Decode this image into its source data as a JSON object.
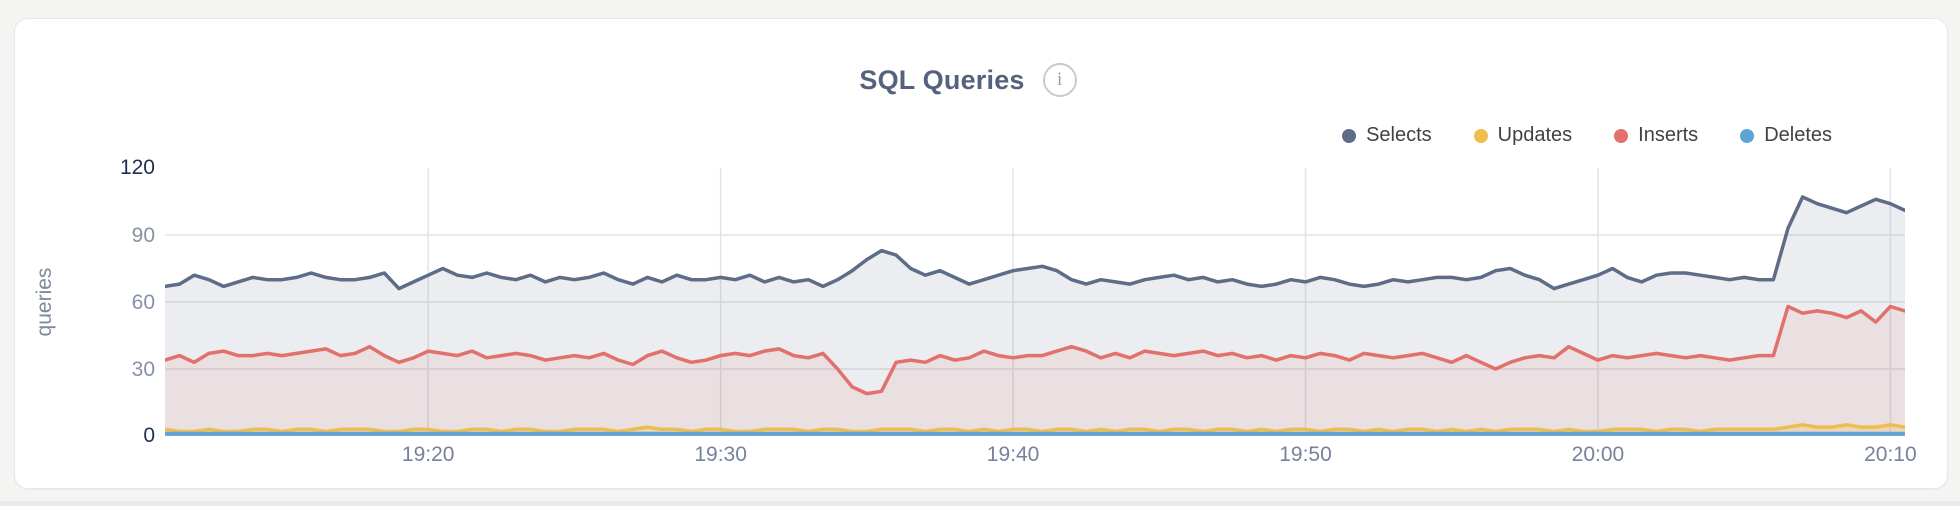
{
  "header": {
    "title": "SQL Queries",
    "info_icon_glyph": "i"
  },
  "legend": {
    "items": [
      {
        "label": "Selects"
      },
      {
        "label": "Updates"
      },
      {
        "label": "Inserts"
      },
      {
        "label": "Deletes"
      }
    ]
  },
  "colors": {
    "selects": "#5d6c87",
    "updates": "#eebd4d",
    "inserts": "#e2706b",
    "deletes": "#5fa4d6",
    "grid": "#e4e4e4",
    "axis_minor_text": "#8691a8",
    "axis_major_text": "#1f2f52"
  },
  "chart_data": {
    "type": "area",
    "title": "SQL Queries",
    "ylabel": "queries",
    "xlabel": "",
    "ylim": [
      0,
      120
    ],
    "yticks": [
      0,
      30,
      60,
      90,
      120
    ],
    "ytick_labels": {
      "v120": "120",
      "v90": "90",
      "v60": "60",
      "v30": "30",
      "v0": "0"
    },
    "xtick_labels": [
      "19:20",
      "19:30",
      "19:40",
      "19:50",
      "20:00",
      "20:10"
    ],
    "x_start_time": "19:11",
    "x_interval_seconds": 30,
    "x_total_minutes": 59.5,
    "xtick_offsets_minutes": [
      9,
      19,
      29,
      39,
      49,
      59
    ],
    "grid": true,
    "legend_position": "top-right",
    "series": [
      {
        "name": "Selects",
        "color": "#5d6c87",
        "values": [
          67,
          68,
          72,
          70,
          67,
          69,
          71,
          70,
          70,
          71,
          73,
          71,
          70,
          70,
          71,
          73,
          66,
          69,
          72,
          75,
          72,
          71,
          73,
          71,
          70,
          72,
          69,
          71,
          70,
          71,
          73,
          70,
          68,
          71,
          69,
          72,
          70,
          70,
          71,
          70,
          72,
          69,
          71,
          69,
          70,
          67,
          70,
          74,
          79,
          83,
          81,
          75,
          72,
          74,
          71,
          68,
          70,
          72,
          74,
          75,
          76,
          74,
          70,
          68,
          70,
          69,
          68,
          70,
          71,
          72,
          70,
          71,
          69,
          70,
          68,
          67,
          68,
          70,
          69,
          71,
          70,
          68,
          67,
          68,
          70,
          69,
          70,
          71,
          71,
          70,
          71,
          74,
          75,
          72,
          70,
          66,
          68,
          70,
          72,
          75,
          71,
          69,
          72,
          73,
          73,
          72,
          71,
          70,
          71,
          70,
          70,
          93,
          107,
          104,
          102,
          100,
          103,
          106,
          104,
          101
        ]
      },
      {
        "name": "Updates",
        "color": "#eebd4d",
        "values": [
          3,
          2,
          2,
          3,
          2,
          2,
          3,
          3,
          2,
          3,
          3,
          2,
          3,
          3,
          3,
          2,
          2,
          3,
          3,
          2,
          2,
          3,
          3,
          2,
          3,
          3,
          2,
          2,
          3,
          3,
          3,
          2,
          3,
          4,
          3,
          3,
          2,
          3,
          3,
          2,
          2,
          3,
          3,
          3,
          2,
          3,
          3,
          2,
          2,
          3,
          3,
          3,
          2,
          3,
          3,
          2,
          3,
          2,
          3,
          3,
          2,
          3,
          3,
          2,
          3,
          2,
          3,
          3,
          2,
          3,
          3,
          2,
          3,
          3,
          2,
          3,
          2,
          3,
          3,
          2,
          3,
          3,
          2,
          3,
          2,
          3,
          3,
          2,
          3,
          2,
          3,
          2,
          3,
          3,
          3,
          2,
          3,
          2,
          2,
          3,
          3,
          3,
          2,
          3,
          3,
          2,
          3,
          3,
          3,
          3,
          3,
          4,
          5,
          4,
          4,
          5,
          4,
          4,
          5,
          4
        ]
      },
      {
        "name": "Inserts",
        "color": "#e2706b",
        "values": [
          34,
          36,
          33,
          37,
          38,
          36,
          36,
          37,
          36,
          37,
          38,
          39,
          36,
          37,
          40,
          36,
          33,
          35,
          38,
          37,
          36,
          38,
          35,
          36,
          37,
          36,
          34,
          35,
          36,
          35,
          37,
          34,
          32,
          36,
          38,
          35,
          33,
          34,
          36,
          37,
          36,
          38,
          39,
          36,
          35,
          37,
          30,
          22,
          19,
          20,
          33,
          34,
          33,
          36,
          34,
          35,
          38,
          36,
          35,
          36,
          36,
          38,
          40,
          38,
          35,
          37,
          35,
          38,
          37,
          36,
          37,
          38,
          36,
          37,
          35,
          36,
          34,
          36,
          35,
          37,
          36,
          34,
          37,
          36,
          35,
          36,
          37,
          35,
          33,
          36,
          33,
          30,
          33,
          35,
          36,
          35,
          40,
          37,
          34,
          36,
          35,
          36,
          37,
          36,
          35,
          36,
          35,
          34,
          35,
          36,
          36,
          58,
          55,
          56,
          55,
          53,
          56,
          51,
          58,
          56
        ]
      },
      {
        "name": "Deletes",
        "color": "#5fa4d6",
        "values": [
          1,
          1,
          1,
          1,
          1,
          1,
          1,
          1,
          1,
          1,
          1,
          1,
          1,
          1,
          1,
          1,
          1,
          1,
          1,
          1,
          1,
          1,
          1,
          1,
          1,
          1,
          1,
          1,
          1,
          1,
          1,
          1,
          1,
          1,
          1,
          1,
          1,
          1,
          1,
          1,
          1,
          1,
          1,
          1,
          1,
          1,
          1,
          1,
          1,
          1,
          1,
          1,
          1,
          1,
          1,
          1,
          1,
          1,
          1,
          1,
          1,
          1,
          1,
          1,
          1,
          1,
          1,
          1,
          1,
          1,
          1,
          1,
          1,
          1,
          1,
          1,
          1,
          1,
          1,
          1,
          1,
          1,
          1,
          1,
          1,
          1,
          1,
          1,
          1,
          1,
          1,
          1,
          1,
          1,
          1,
          1,
          1,
          1,
          1,
          1,
          1,
          1,
          1,
          1,
          1,
          1,
          1,
          1,
          1,
          1,
          1,
          1,
          1,
          1,
          1,
          1,
          1,
          1,
          1,
          1
        ]
      }
    ]
  }
}
